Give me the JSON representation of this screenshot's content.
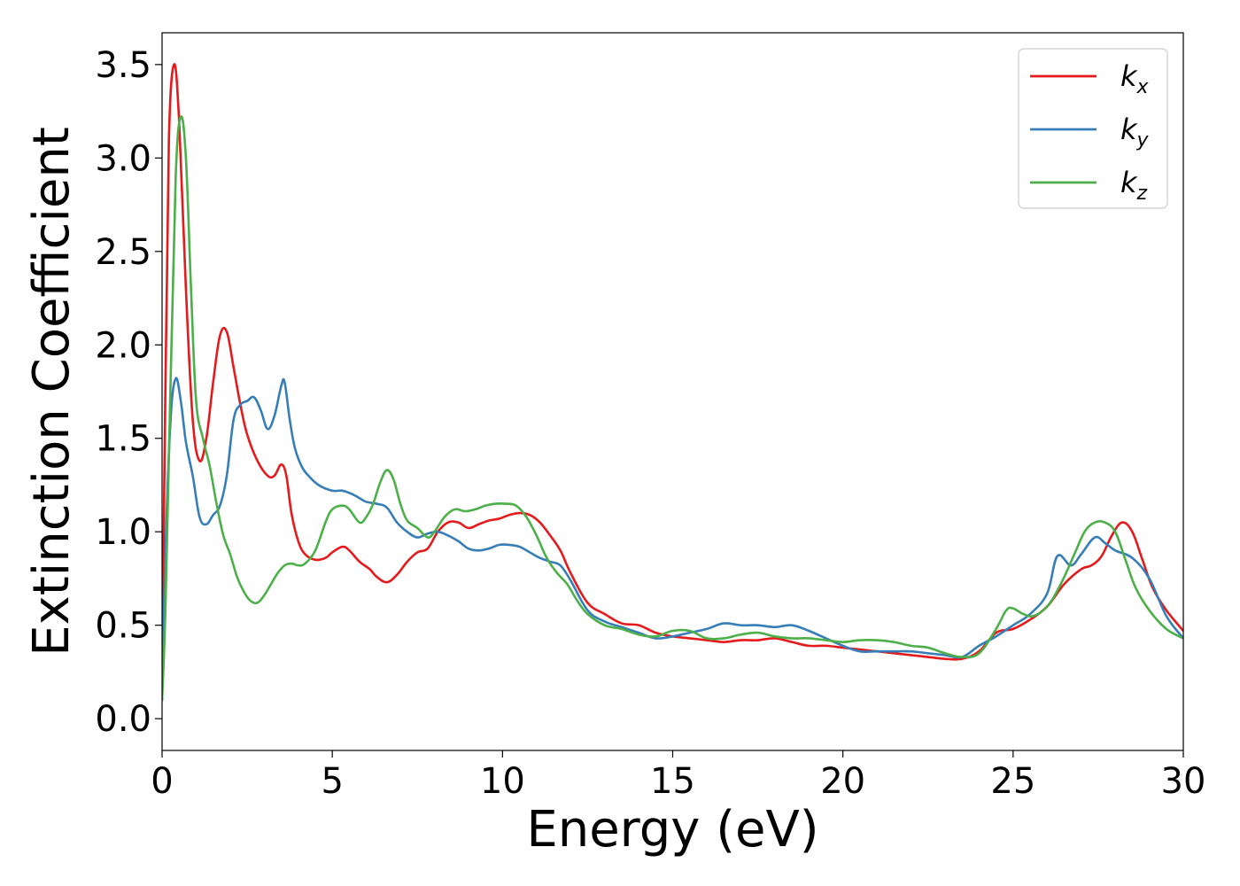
{
  "chart_data": {
    "type": "line",
    "title": "",
    "xlabel": "Energy (eV)",
    "ylabel": "Extinction Coefficient",
    "xlim": [
      0,
      30
    ],
    "ylim": [
      -0.17,
      3.67
    ],
    "xticks": [
      0,
      5,
      10,
      15,
      20,
      25,
      30
    ],
    "xtick_labels": [
      "0",
      "5",
      "10",
      "15",
      "20",
      "25",
      "30"
    ],
    "yticks": [
      0.0,
      0.5,
      1.0,
      1.5,
      2.0,
      2.5,
      3.0,
      3.5
    ],
    "ytick_labels": [
      "0.0",
      "0.5",
      "1.0",
      "1.5",
      "2.0",
      "2.5",
      "3.0",
      "3.5"
    ],
    "grid": false,
    "legend": "top-right",
    "series": [
      {
        "name": "k_x",
        "legend_base": "k",
        "legend_sub": "x",
        "color": "#e41a1c",
        "x": [
          0,
          0.1,
          0.2,
          0.35,
          0.5,
          0.7,
          0.9,
          1.1,
          1.3,
          1.5,
          1.7,
          1.9,
          2.1,
          2.3,
          2.5,
          2.8,
          3.1,
          3.3,
          3.5,
          3.65,
          3.8,
          4.0,
          4.2,
          4.5,
          4.8,
          5.0,
          5.3,
          5.5,
          5.8,
          6.1,
          6.3,
          6.6,
          6.9,
          7.2,
          7.5,
          7.8,
          8.1,
          8.4,
          8.7,
          9.0,
          9.3,
          9.6,
          9.9,
          10.2,
          10.5,
          10.8,
          11.1,
          11.4,
          11.7,
          12.0,
          12.5,
          13.0,
          13.5,
          14.0,
          14.5,
          15.0,
          15.5,
          16.0,
          16.5,
          17.0,
          17.5,
          18.0,
          18.5,
          19.0,
          19.5,
          20.0,
          20.5,
          21.0,
          21.5,
          22.0,
          22.5,
          23.0,
          23.5,
          24.0,
          24.5,
          25.0,
          25.5,
          26.0,
          26.5,
          27.0,
          27.3,
          27.6,
          27.9,
          28.2,
          28.5,
          28.8,
          29.1,
          29.5,
          30.0
        ],
        "y": [
          0.2,
          1.8,
          3.1,
          3.5,
          3.2,
          2.3,
          1.6,
          1.38,
          1.5,
          1.8,
          2.05,
          2.07,
          1.88,
          1.68,
          1.52,
          1.38,
          1.3,
          1.3,
          1.36,
          1.3,
          1.1,
          0.95,
          0.88,
          0.85,
          0.86,
          0.89,
          0.92,
          0.9,
          0.84,
          0.8,
          0.76,
          0.73,
          0.77,
          0.84,
          0.89,
          0.91,
          1.0,
          1.05,
          1.05,
          1.02,
          1.04,
          1.06,
          1.07,
          1.09,
          1.1,
          1.09,
          1.05,
          0.98,
          0.9,
          0.78,
          0.62,
          0.56,
          0.51,
          0.5,
          0.46,
          0.44,
          0.43,
          0.42,
          0.41,
          0.42,
          0.42,
          0.43,
          0.41,
          0.39,
          0.39,
          0.38,
          0.37,
          0.36,
          0.35,
          0.34,
          0.33,
          0.32,
          0.32,
          0.36,
          0.46,
          0.48,
          0.53,
          0.6,
          0.72,
          0.8,
          0.82,
          0.87,
          0.98,
          1.05,
          1.0,
          0.85,
          0.7,
          0.58,
          0.47
        ]
      },
      {
        "name": "k_y",
        "legend_base": "k",
        "legend_sub": "y",
        "color": "#377eb8",
        "x": [
          0,
          0.1,
          0.25,
          0.4,
          0.55,
          0.7,
          0.9,
          1.1,
          1.3,
          1.5,
          1.7,
          1.9,
          2.1,
          2.3,
          2.5,
          2.7,
          2.9,
          3.1,
          3.3,
          3.5,
          3.6,
          3.75,
          3.9,
          4.1,
          4.3,
          4.6,
          5.0,
          5.3,
          5.6,
          5.8,
          6.0,
          6.3,
          6.6,
          6.9,
          7.2,
          7.5,
          7.8,
          8.1,
          8.4,
          8.7,
          9.0,
          9.3,
          9.6,
          9.9,
          10.2,
          10.5,
          10.8,
          11.1,
          11.4,
          11.7,
          12.0,
          12.5,
          13.0,
          13.5,
          14.0,
          14.5,
          15.0,
          15.5,
          16.0,
          16.5,
          17.0,
          17.5,
          18.0,
          18.5,
          19.0,
          19.5,
          20.0,
          20.5,
          21.0,
          21.5,
          22.0,
          22.5,
          23.0,
          23.5,
          24.0,
          24.5,
          25.0,
          25.5,
          26.0,
          26.3,
          26.7,
          27.0,
          27.4,
          27.7,
          28.0,
          28.5,
          29.0,
          29.5,
          30.0
        ],
        "y": [
          0.1,
          0.9,
          1.6,
          1.82,
          1.7,
          1.48,
          1.3,
          1.08,
          1.04,
          1.09,
          1.14,
          1.3,
          1.6,
          1.68,
          1.7,
          1.72,
          1.65,
          1.55,
          1.62,
          1.78,
          1.8,
          1.6,
          1.45,
          1.35,
          1.3,
          1.25,
          1.22,
          1.22,
          1.2,
          1.18,
          1.16,
          1.15,
          1.13,
          1.05,
          1.0,
          0.97,
          0.99,
          1.0,
          0.98,
          0.95,
          0.91,
          0.9,
          0.91,
          0.93,
          0.93,
          0.92,
          0.89,
          0.86,
          0.84,
          0.82,
          0.74,
          0.58,
          0.52,
          0.49,
          0.46,
          0.43,
          0.44,
          0.46,
          0.48,
          0.51,
          0.5,
          0.5,
          0.49,
          0.5,
          0.47,
          0.43,
          0.39,
          0.36,
          0.36,
          0.36,
          0.36,
          0.35,
          0.34,
          0.33,
          0.39,
          0.44,
          0.5,
          0.56,
          0.67,
          0.87,
          0.82,
          0.88,
          0.97,
          0.94,
          0.9,
          0.86,
          0.75,
          0.55,
          0.43
        ]
      },
      {
        "name": "k_z",
        "legend_base": "k",
        "legend_sub": "z",
        "color": "#4daf4a",
        "x": [
          0,
          0.1,
          0.25,
          0.4,
          0.55,
          0.7,
          0.85,
          1.0,
          1.2,
          1.4,
          1.6,
          1.8,
          2.0,
          2.2,
          2.4,
          2.6,
          2.8,
          3.0,
          3.2,
          3.4,
          3.6,
          3.8,
          4.0,
          4.2,
          4.5,
          4.8,
          5.0,
          5.3,
          5.5,
          5.8,
          6.0,
          6.2,
          6.4,
          6.6,
          6.8,
          7.0,
          7.2,
          7.5,
          7.8,
          8.0,
          8.3,
          8.6,
          8.9,
          9.2,
          9.5,
          9.8,
          10.1,
          10.4,
          10.7,
          11.0,
          11.3,
          11.6,
          11.9,
          12.2,
          12.5,
          13.0,
          13.5,
          14.0,
          14.5,
          15.0,
          15.5,
          16.0,
          16.5,
          17.0,
          17.5,
          18.0,
          18.5,
          19.0,
          19.5,
          20.0,
          20.5,
          21.0,
          21.5,
          22.0,
          22.5,
          23.0,
          23.5,
          24.0,
          24.5,
          24.8,
          25.0,
          25.3,
          25.6,
          26.0,
          26.4,
          26.8,
          27.1,
          27.4,
          27.7,
          28.0,
          28.3,
          28.6,
          29.0,
          29.5,
          30.0
        ],
        "y": [
          0.1,
          0.6,
          1.8,
          2.9,
          3.22,
          3.0,
          2.3,
          1.7,
          1.5,
          1.35,
          1.15,
          0.98,
          0.88,
          0.76,
          0.68,
          0.63,
          0.62,
          0.66,
          0.72,
          0.78,
          0.82,
          0.83,
          0.82,
          0.83,
          0.9,
          1.05,
          1.12,
          1.14,
          1.12,
          1.05,
          1.08,
          1.15,
          1.26,
          1.33,
          1.28,
          1.15,
          1.06,
          1.02,
          0.97,
          1.0,
          1.08,
          1.12,
          1.11,
          1.12,
          1.14,
          1.15,
          1.15,
          1.14,
          1.08,
          0.98,
          0.86,
          0.78,
          0.72,
          0.63,
          0.56,
          0.5,
          0.48,
          0.45,
          0.44,
          0.47,
          0.47,
          0.43,
          0.43,
          0.45,
          0.46,
          0.44,
          0.43,
          0.43,
          0.42,
          0.41,
          0.42,
          0.42,
          0.41,
          0.39,
          0.38,
          0.35,
          0.33,
          0.35,
          0.48,
          0.58,
          0.59,
          0.56,
          0.55,
          0.6,
          0.72,
          0.88,
          1.0,
          1.05,
          1.05,
          1.0,
          0.85,
          0.7,
          0.58,
          0.48,
          0.43
        ]
      }
    ]
  }
}
